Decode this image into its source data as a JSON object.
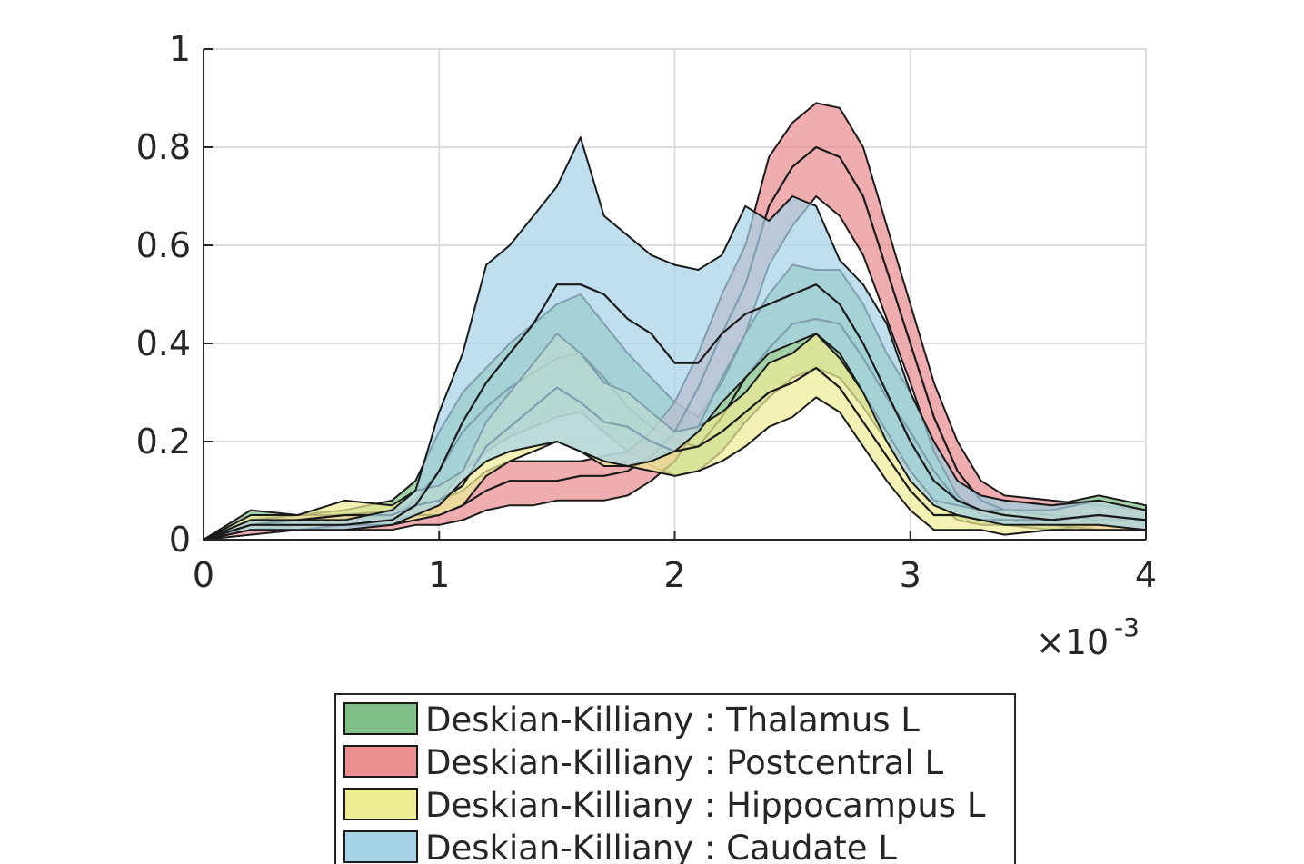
{
  "chart_data": {
    "type": "area",
    "title": "",
    "xlabel": "",
    "ylabel": "",
    "x_multiplier_label": "×10",
    "x_multiplier_exponent": "-3",
    "xlim": [
      0,
      4
    ],
    "ylim": [
      0,
      1
    ],
    "grid": true,
    "legend_placement": "bottom-center",
    "x_ticks": [
      {
        "value": 0,
        "label": "0"
      },
      {
        "value": 1,
        "label": "1"
      },
      {
        "value": 2,
        "label": "2"
      },
      {
        "value": 3,
        "label": "3"
      },
      {
        "value": 4,
        "label": "4"
      }
    ],
    "y_ticks": [
      {
        "value": 0,
        "label": "0"
      },
      {
        "value": 0.2,
        "label": "0.2"
      },
      {
        "value": 0.4,
        "label": "0.4"
      },
      {
        "value": 0.6,
        "label": "0.6"
      },
      {
        "value": 0.8,
        "label": "0.8"
      },
      {
        "value": 1,
        "label": "1"
      }
    ],
    "x": [
      0,
      0.2,
      0.4,
      0.6,
      0.8,
      0.9,
      1.0,
      1.1,
      1.2,
      1.3,
      1.4,
      1.5,
      1.6,
      1.7,
      1.8,
      1.9,
      2.0,
      2.1,
      2.2,
      2.3,
      2.4,
      2.5,
      2.6,
      2.7,
      2.8,
      2.9,
      3.0,
      3.1,
      3.2,
      3.3,
      3.4,
      3.6,
      3.8,
      4.0
    ],
    "series": [
      {
        "name": "Deskian-Killiany : Thalamus L",
        "fill": "#7fbf85",
        "upper": [
          0.0,
          0.06,
          0.05,
          0.06,
          0.08,
          0.12,
          0.22,
          0.3,
          0.35,
          0.4,
          0.44,
          0.48,
          0.5,
          0.44,
          0.38,
          0.33,
          0.28,
          0.25,
          0.32,
          0.42,
          0.5,
          0.56,
          0.55,
          0.55,
          0.48,
          0.38,
          0.3,
          0.2,
          0.12,
          0.09,
          0.08,
          0.07,
          0.09,
          0.07
        ],
        "median": [
          0.0,
          0.04,
          0.03,
          0.04,
          0.05,
          0.08,
          0.14,
          0.22,
          0.27,
          0.31,
          0.34,
          0.37,
          0.38,
          0.33,
          0.27,
          0.23,
          0.2,
          0.19,
          0.25,
          0.33,
          0.39,
          0.44,
          0.45,
          0.44,
          0.37,
          0.29,
          0.22,
          0.14,
          0.08,
          0.06,
          0.05,
          0.04,
          0.05,
          0.04
        ],
        "lower": [
          0.0,
          0.02,
          0.02,
          0.02,
          0.03,
          0.05,
          0.08,
          0.14,
          0.18,
          0.21,
          0.23,
          0.25,
          0.26,
          0.22,
          0.18,
          0.15,
          0.13,
          0.14,
          0.18,
          0.24,
          0.29,
          0.33,
          0.35,
          0.33,
          0.27,
          0.2,
          0.14,
          0.08,
          0.04,
          0.03,
          0.03,
          0.02,
          0.03,
          0.02
        ]
      },
      {
        "name": "Deskian-Killiany : Postcentral L",
        "fill": "#ea8e91",
        "upper": [
          0.0,
          0.04,
          0.05,
          0.05,
          0.06,
          0.07,
          0.08,
          0.1,
          0.14,
          0.16,
          0.16,
          0.16,
          0.16,
          0.17,
          0.18,
          0.22,
          0.28,
          0.38,
          0.5,
          0.6,
          0.78,
          0.85,
          0.89,
          0.88,
          0.8,
          0.64,
          0.48,
          0.32,
          0.2,
          0.12,
          0.09,
          0.08,
          0.07,
          0.06
        ],
        "median": [
          0.0,
          0.02,
          0.03,
          0.03,
          0.04,
          0.05,
          0.05,
          0.07,
          0.1,
          0.12,
          0.12,
          0.12,
          0.13,
          0.13,
          0.14,
          0.17,
          0.22,
          0.31,
          0.42,
          0.52,
          0.68,
          0.76,
          0.8,
          0.78,
          0.7,
          0.55,
          0.4,
          0.25,
          0.14,
          0.08,
          0.06,
          0.05,
          0.04,
          0.04
        ],
        "lower": [
          0.0,
          0.01,
          0.02,
          0.02,
          0.02,
          0.03,
          0.03,
          0.04,
          0.06,
          0.07,
          0.07,
          0.08,
          0.08,
          0.08,
          0.09,
          0.12,
          0.16,
          0.23,
          0.33,
          0.42,
          0.56,
          0.64,
          0.7,
          0.66,
          0.58,
          0.45,
          0.32,
          0.18,
          0.09,
          0.05,
          0.04,
          0.03,
          0.02,
          0.02
        ]
      },
      {
        "name": "Deskian-Killiany : Hippocampus L",
        "fill": "#eeec95",
        "upper": [
          0.0,
          0.05,
          0.05,
          0.08,
          0.07,
          0.1,
          0.11,
          0.14,
          0.24,
          0.3,
          0.36,
          0.42,
          0.38,
          0.32,
          0.3,
          0.26,
          0.22,
          0.23,
          0.26,
          0.3,
          0.36,
          0.38,
          0.42,
          0.37,
          0.3,
          0.22,
          0.14,
          0.08,
          0.07,
          0.06,
          0.06,
          0.06,
          0.08,
          0.06
        ],
        "median": [
          0.0,
          0.03,
          0.04,
          0.05,
          0.05,
          0.07,
          0.08,
          0.11,
          0.19,
          0.23,
          0.27,
          0.31,
          0.28,
          0.24,
          0.23,
          0.2,
          0.18,
          0.19,
          0.22,
          0.26,
          0.3,
          0.32,
          0.35,
          0.31,
          0.24,
          0.17,
          0.1,
          0.05,
          0.05,
          0.04,
          0.04,
          0.04,
          0.05,
          0.04
        ],
        "lower": [
          0.0,
          0.02,
          0.02,
          0.03,
          0.03,
          0.04,
          0.05,
          0.07,
          0.13,
          0.16,
          0.18,
          0.2,
          0.18,
          0.15,
          0.15,
          0.14,
          0.13,
          0.14,
          0.16,
          0.19,
          0.23,
          0.25,
          0.29,
          0.26,
          0.19,
          0.12,
          0.06,
          0.02,
          0.02,
          0.02,
          0.01,
          0.02,
          0.02,
          0.02
        ]
      },
      {
        "name": "Deskian-Killiany : Caudate L",
        "fill": "#a6d2e8",
        "upper": [
          0.0,
          0.04,
          0.04,
          0.04,
          0.06,
          0.1,
          0.26,
          0.38,
          0.56,
          0.6,
          0.66,
          0.72,
          0.82,
          0.66,
          0.62,
          0.58,
          0.56,
          0.55,
          0.58,
          0.68,
          0.65,
          0.7,
          0.68,
          0.57,
          0.52,
          0.44,
          0.3,
          0.2,
          0.12,
          0.09,
          0.08,
          0.07,
          0.08,
          0.06
        ],
        "median": [
          0.0,
          0.03,
          0.03,
          0.03,
          0.04,
          0.07,
          0.14,
          0.24,
          0.32,
          0.38,
          0.44,
          0.52,
          0.52,
          0.5,
          0.45,
          0.42,
          0.36,
          0.36,
          0.42,
          0.46,
          0.48,
          0.5,
          0.52,
          0.48,
          0.4,
          0.3,
          0.2,
          0.12,
          0.08,
          0.06,
          0.05,
          0.04,
          0.05,
          0.04
        ],
        "lower": [
          0.0,
          0.02,
          0.02,
          0.02,
          0.03,
          0.05,
          0.07,
          0.12,
          0.16,
          0.18,
          0.19,
          0.2,
          0.18,
          0.16,
          0.15,
          0.16,
          0.18,
          0.22,
          0.28,
          0.33,
          0.38,
          0.4,
          0.42,
          0.38,
          0.3,
          0.2,
          0.12,
          0.07,
          0.05,
          0.04,
          0.03,
          0.03,
          0.03,
          0.02
        ]
      }
    ]
  }
}
